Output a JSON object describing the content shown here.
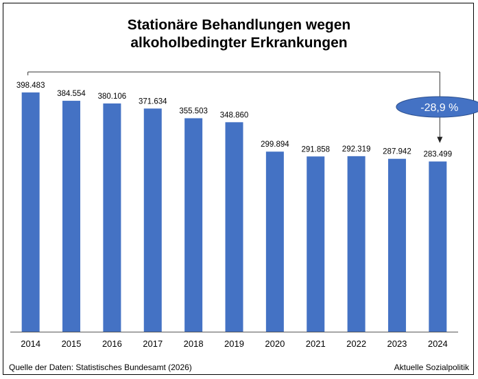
{
  "chart_data": {
    "type": "bar",
    "title": [
      "Stationäre Behandlungen wegen",
      "alkoholbedingter Erkrankungen"
    ],
    "categories": [
      "2014",
      "2015",
      "2016",
      "2017",
      "2018",
      "2019",
      "2020",
      "2021",
      "2022",
      "2023",
      "2024"
    ],
    "values": [
      398483,
      384554,
      380106,
      371634,
      355503,
      348860,
      299894,
      291858,
      292319,
      287942,
      283499
    ],
    "value_labels": [
      "398.483",
      "384.554",
      "380.106",
      "371.634",
      "355.503",
      "348.860",
      "299.894",
      "291.858",
      "292.319",
      "287.942",
      "283.499"
    ],
    "ylim": [
      0,
      420000
    ],
    "grid": false,
    "bar_color": "#4472c4",
    "annotation": {
      "label": "-28,9 %",
      "from": "2014",
      "to": "2024",
      "fill": "#4472c4",
      "text_color": "#ffffff"
    }
  },
  "footer": {
    "source": "Quelle der Daten: Statistisches Bundesamt (2026)",
    "brand": "Aktuelle Sozialpolitik"
  }
}
